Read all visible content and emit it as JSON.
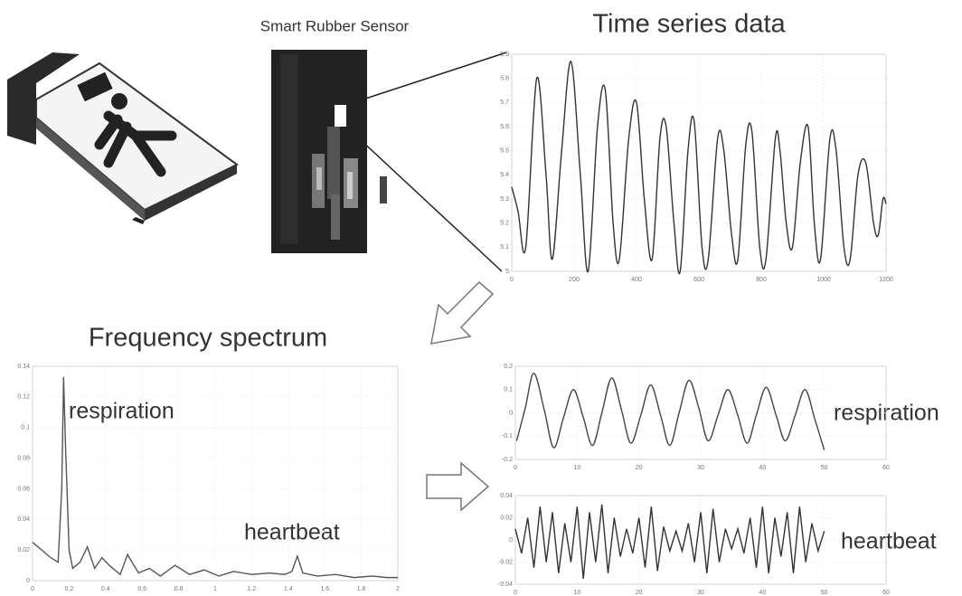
{
  "sensor_label": "Smart Rubber Sensor",
  "time_series": {
    "title": "Time series data",
    "xlim": [
      0,
      1200
    ],
    "xticks": [
      0,
      200,
      400,
      600,
      800,
      1000,
      1200
    ],
    "ylim": [
      5,
      5.9
    ],
    "yticks": [
      5,
      5.1,
      5.2,
      5.3,
      5.4,
      5.5,
      5.6,
      5.7,
      5.8,
      5.9
    ],
    "x": [
      0,
      20,
      45,
      80,
      110,
      130,
      160,
      190,
      220,
      245,
      275,
      300,
      325,
      345,
      375,
      400,
      425,
      450,
      475,
      495,
      520,
      540,
      565,
      585,
      610,
      630,
      660,
      680,
      705,
      725,
      750,
      770,
      795,
      815,
      845,
      860,
      880,
      900,
      925,
      950,
      970,
      990,
      1020,
      1040,
      1065,
      1085,
      1110,
      1135,
      1160,
      1175,
      1190,
      1200
    ],
    "values": [
      5.35,
      5.25,
      5.1,
      5.8,
      5.4,
      5.05,
      5.5,
      5.87,
      5.4,
      5.0,
      5.6,
      5.75,
      5.2,
      5.05,
      5.55,
      5.7,
      5.3,
      5.05,
      5.55,
      5.6,
      5.2,
      5.0,
      5.5,
      5.62,
      5.1,
      5.05,
      5.55,
      5.5,
      5.15,
      5.05,
      5.52,
      5.58,
      5.1,
      5.05,
      5.55,
      5.5,
      5.2,
      5.1,
      5.45,
      5.6,
      5.2,
      5.05,
      5.55,
      5.5,
      5.1,
      5.05,
      5.4,
      5.45,
      5.2,
      5.15,
      5.3,
      5.28
    ]
  },
  "spectrum": {
    "title": "Frequency spectrum",
    "annotations": [
      "respiration",
      "heartbeat"
    ],
    "xlim": [
      0,
      2
    ],
    "xticks": [
      0,
      0.2,
      0.4,
      0.6,
      0.8,
      1,
      1.2,
      1.4,
      1.6,
      1.8,
      2
    ],
    "ylim": [
      0,
      0.14
    ],
    "yticks": [
      0,
      0.02,
      0.04,
      0.06,
      0.08,
      0.1,
      0.12,
      0.14
    ],
    "x": [
      0,
      0.05,
      0.1,
      0.14,
      0.16,
      0.17,
      0.18,
      0.2,
      0.22,
      0.26,
      0.3,
      0.34,
      0.38,
      0.42,
      0.48,
      0.52,
      0.58,
      0.64,
      0.7,
      0.78,
      0.86,
      0.94,
      1.02,
      1.1,
      1.2,
      1.3,
      1.38,
      1.42,
      1.45,
      1.48,
      1.56,
      1.66,
      1.76,
      1.86,
      1.94,
      2
    ],
    "values": [
      0.025,
      0.02,
      0.015,
      0.012,
      0.06,
      0.133,
      0.09,
      0.02,
      0.008,
      0.012,
      0.022,
      0.008,
      0.015,
      0.01,
      0.004,
      0.017,
      0.005,
      0.008,
      0.003,
      0.01,
      0.004,
      0.007,
      0.003,
      0.006,
      0.004,
      0.005,
      0.004,
      0.006,
      0.016,
      0.005,
      0.003,
      0.004,
      0.002,
      0.003,
      0.002,
      0.002
    ]
  },
  "respiration_plot": {
    "label": "respiration",
    "xlim": [
      0,
      60
    ],
    "xticks": [
      0,
      10,
      20,
      30,
      40,
      50,
      60
    ],
    "ylim": [
      -0.2,
      0.2
    ],
    "yticks": [
      -0.2,
      -0.1,
      0,
      0.1,
      0.2
    ],
    "x": [
      0.2,
      1.6,
      3,
      4.7,
      6.2,
      7.8,
      9.4,
      11,
      12.5,
      14,
      15.6,
      17.2,
      18.7,
      20.3,
      21.9,
      23.5,
      25,
      26.5,
      28.1,
      29.7,
      31.2,
      32.8,
      34.4,
      36,
      37.5,
      39,
      40.6,
      42.2,
      43.7,
      45.3,
      46.9,
      48.5,
      50
    ],
    "values": [
      -0.12,
      0.02,
      0.17,
      0.01,
      -0.15,
      -0.02,
      0.1,
      -0.02,
      -0.14,
      0,
      0.15,
      0.01,
      -0.13,
      -0.01,
      0.12,
      -0.01,
      -0.14,
      0,
      0.14,
      0.02,
      -0.12,
      -0.01,
      0.1,
      -0.01,
      -0.13,
      -0.01,
      0.11,
      -0.01,
      -0.12,
      -0.01,
      0.1,
      -0.03,
      -0.16
    ]
  },
  "heartbeat_plot": {
    "label": "heartbeat",
    "xlim": [
      0,
      60
    ],
    "xticks": [
      0,
      10,
      20,
      30,
      40,
      50,
      60
    ],
    "ylim": [
      -0.04,
      0.04
    ],
    "yticks": [
      -0.04,
      -0.02,
      0,
      0.02,
      0.04
    ],
    "x": [
      0,
      1,
      2,
      3,
      4,
      5,
      6,
      7,
      8,
      9,
      10,
      11,
      12,
      13,
      14,
      15,
      16,
      17,
      18,
      19,
      20,
      21,
      22,
      23,
      24,
      25,
      26,
      27,
      28,
      29,
      30,
      31,
      32,
      33,
      34,
      35,
      36,
      37,
      38,
      39,
      40,
      41,
      42,
      43,
      44,
      45,
      46,
      47,
      48,
      49,
      50
    ],
    "values": [
      0.01,
      -0.012,
      0.02,
      -0.025,
      0.03,
      -0.02,
      0.025,
      -0.03,
      0.015,
      -0.02,
      0.03,
      -0.035,
      0.025,
      -0.02,
      0.032,
      -0.03,
      0.02,
      -0.015,
      0.01,
      -0.012,
      0.02,
      -0.025,
      0.03,
      -0.028,
      0.012,
      -0.01,
      0.008,
      -0.01,
      0.015,
      -0.02,
      0.025,
      -0.03,
      0.028,
      -0.02,
      0.01,
      -0.008,
      0.01,
      -0.012,
      0.02,
      -0.025,
      0.03,
      -0.03,
      0.02,
      -0.015,
      0.025,
      -0.03,
      0.03,
      -0.02,
      0.015,
      -0.01,
      0.008
    ]
  }
}
